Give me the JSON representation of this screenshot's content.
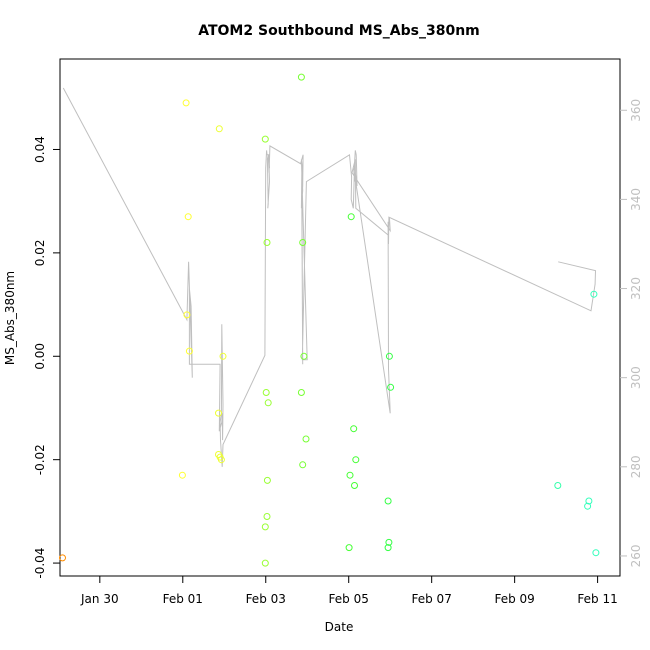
{
  "chart_data": {
    "type": "scatter",
    "title": "ATOM2 Southbound MS_Abs_380nm",
    "xlabel": "Date",
    "ylabel": "MS_Abs_380nm",
    "x_unit": "days (Jan 29 = 0)",
    "x_ticks": [
      {
        "x": 1,
        "label": "Jan 30"
      },
      {
        "x": 3,
        "label": "Feb 01"
      },
      {
        "x": 5,
        "label": "Feb 03"
      },
      {
        "x": 7,
        "label": "Feb 05"
      },
      {
        "x": 9,
        "label": "Feb 07"
      },
      {
        "x": 11,
        "label": "Feb 09"
      },
      {
        "x": 13,
        "label": "Feb 11"
      }
    ],
    "y_ticks": [
      -0.04,
      -0.02,
      0.0,
      0.02,
      0.04
    ],
    "y_tick_labels": [
      "-0.04",
      "-0.02",
      "0.00",
      "0.02",
      "0.04"
    ],
    "y2_ticks": [
      260,
      280,
      300,
      320,
      340,
      360
    ],
    "y2_tick_labels": [
      "260",
      "280",
      "300",
      "320",
      "340",
      "360"
    ],
    "xlim": [
      0.04,
      13.54
    ],
    "ylim": [
      -0.0425,
      0.0575
    ],
    "y2lim": [
      255.5,
      371.5
    ],
    "points": [
      {
        "x": 0.1,
        "y": -0.039,
        "color": "#ff8c00"
      },
      {
        "x": 2.99,
        "y": -0.023,
        "color": "#ffff33"
      },
      {
        "x": 3.08,
        "y": 0.049,
        "color": "#ffff33"
      },
      {
        "x": 3.1,
        "y": 0.008,
        "color": "#ffff33"
      },
      {
        "x": 3.13,
        "y": 0.027,
        "color": "#ffff33"
      },
      {
        "x": 3.16,
        "y": 0.001,
        "color": "#ffff33"
      },
      {
        "x": 3.88,
        "y": 0.044,
        "color": "#eeff33"
      },
      {
        "x": 3.86,
        "y": -0.011,
        "color": "#eeff33"
      },
      {
        "x": 3.86,
        "y": -0.019,
        "color": "#eeff33"
      },
      {
        "x": 3.9,
        "y": -0.0195,
        "color": "#eeff33"
      },
      {
        "x": 3.93,
        "y": -0.02,
        "color": "#eeff33"
      },
      {
        "x": 3.97,
        "y": 0.0,
        "color": "#eeff33"
      },
      {
        "x": 4.99,
        "y": 0.042,
        "color": "#99ff33"
      },
      {
        "x": 5.01,
        "y": -0.007,
        "color": "#99ff33"
      },
      {
        "x": 5.03,
        "y": 0.022,
        "color": "#99ff33"
      },
      {
        "x": 5.06,
        "y": -0.009,
        "color": "#99ff33"
      },
      {
        "x": 5.04,
        "y": -0.024,
        "color": "#99ff33"
      },
      {
        "x": 5.03,
        "y": -0.031,
        "color": "#99ff33"
      },
      {
        "x": 4.99,
        "y": -0.033,
        "color": "#99ff33"
      },
      {
        "x": 4.99,
        "y": -0.04,
        "color": "#99ff33"
      },
      {
        "x": 5.86,
        "y": 0.054,
        "color": "#77ff33"
      },
      {
        "x": 5.89,
        "y": 0.022,
        "color": "#77ff33"
      },
      {
        "x": 5.86,
        "y": -0.007,
        "color": "#77ff33"
      },
      {
        "x": 5.92,
        "y": 0.0,
        "color": "#77ff33"
      },
      {
        "x": 5.97,
        "y": -0.016,
        "color": "#77ff33"
      },
      {
        "x": 5.89,
        "y": -0.021,
        "color": "#77ff33"
      },
      {
        "x": 7.06,
        "y": 0.027,
        "color": "#44ff33"
      },
      {
        "x": 7.12,
        "y": -0.014,
        "color": "#44ff33"
      },
      {
        "x": 7.17,
        "y": -0.02,
        "color": "#44ff33"
      },
      {
        "x": 7.03,
        "y": -0.023,
        "color": "#44ff33"
      },
      {
        "x": 7.14,
        "y": -0.025,
        "color": "#44ff33"
      },
      {
        "x": 7.01,
        "y": -0.037,
        "color": "#44ff33"
      },
      {
        "x": 7.98,
        "y": 0.0,
        "color": "#33ff44"
      },
      {
        "x": 8.01,
        "y": -0.006,
        "color": "#33ff44"
      },
      {
        "x": 7.95,
        "y": -0.028,
        "color": "#33ff44"
      },
      {
        "x": 7.97,
        "y": -0.036,
        "color": "#33ff44"
      },
      {
        "x": 7.95,
        "y": -0.037,
        "color": "#33ff44"
      },
      {
        "x": 12.04,
        "y": -0.025,
        "color": "#33ffaa"
      },
      {
        "x": 12.91,
        "y": 0.012,
        "color": "#33ffbb"
      },
      {
        "x": 12.79,
        "y": -0.028,
        "color": "#33ffbb"
      },
      {
        "x": 12.76,
        "y": -0.029,
        "color": "#33ffbb"
      },
      {
        "x": 12.96,
        "y": -0.038,
        "color": "#33ffbb"
      }
    ],
    "line_y2": {
      "color": "#bfbfbf",
      "x": [
        0.12,
        3.1,
        3.14,
        3.23,
        3.2,
        3.16,
        3.16,
        3.9,
        3.88,
        3.94,
        3.95,
        3.96,
        3.97,
        3.94,
        3.93,
        3.9,
        3.91,
        3.95,
        3.97,
        4.98,
        5.0,
        5.02,
        5.03,
        5.06,
        5.08,
        5.09,
        5.07,
        5.09,
        5.05,
        5.06,
        5.04,
        5.06,
        5.08,
        5.1,
        5.84,
        5.9,
        5.89,
        5.86,
        5.87,
        5.89,
        5.87,
        5.86,
        5.89,
        5.88,
        5.87,
        5.88,
        5.86,
        6.0,
        5.88,
        5.98,
        7.02,
        7.07,
        7.06,
        7.11,
        7.13,
        7.14,
        7.16,
        7.18,
        7.19,
        7.2,
        7.16,
        7.14,
        7.12,
        8.0,
        7.96,
        7.95,
        7.96,
        7.97,
        7.98,
        8.0,
        7.08,
        7.16,
        7.17,
        7.95,
        7.96,
        7.97,
        12.84,
        12.94,
        12.95,
        12.05
      ],
      "y": [
        365,
        313,
        326,
        300,
        316,
        320,
        303,
        303,
        288,
        290,
        292,
        286,
        294,
        312,
        292,
        290,
        286,
        280,
        285,
        305,
        347,
        351,
        350,
        350,
        350,
        347,
        350,
        344,
        338,
        339,
        349,
        350,
        346,
        352,
        348,
        350,
        343,
        338,
        346,
        303,
        340,
        338,
        342,
        344,
        342,
        347,
        349,
        304,
        304,
        344,
        350,
        345,
        340,
        338,
        344,
        348,
        351,
        350,
        347,
        343,
        346,
        344,
        347,
        292,
        302,
        335,
        334,
        335,
        336,
        333,
        346,
        349,
        338,
        332,
        330,
        336,
        315,
        321,
        324,
        326
      ],
      "note": "approximate trace"
    },
    "grid": false,
    "legend": "none"
  }
}
